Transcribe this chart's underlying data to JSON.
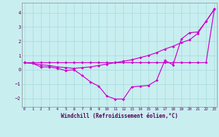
{
  "xlabel": "Windchill (Refroidissement éolien,°C)",
  "background_color": "#c8eef0",
  "grid_color": "#aadddd",
  "line_color": "#cc00cc",
  "x_ticks": [
    0,
    1,
    2,
    3,
    4,
    5,
    6,
    7,
    8,
    9,
    10,
    11,
    12,
    13,
    14,
    15,
    16,
    17,
    18,
    19,
    20,
    21,
    22,
    23
  ],
  "y_ticks": [
    -2,
    -1,
    0,
    1,
    2,
    3,
    4
  ],
  "xlim": [
    -0.3,
    23.3
  ],
  "ylim": [
    -2.6,
    4.7
  ],
  "series_top": [
    0.5,
    0.5,
    0.5,
    0.5,
    0.5,
    0.5,
    0.5,
    0.5,
    0.5,
    0.5,
    0.5,
    0.5,
    0.5,
    0.5,
    0.5,
    0.5,
    0.5,
    0.5,
    0.5,
    0.5,
    0.5,
    0.5,
    0.5,
    4.25
  ],
  "series_mid": [
    0.5,
    0.45,
    0.35,
    0.3,
    0.2,
    0.15,
    0.1,
    0.15,
    0.2,
    0.3,
    0.4,
    0.5,
    0.6,
    0.7,
    0.85,
    1.0,
    1.2,
    1.45,
    1.65,
    1.9,
    2.1,
    2.55,
    3.4,
    4.25
  ],
  "series_bot": [
    0.5,
    0.45,
    0.2,
    0.2,
    0.1,
    -0.05,
    0.0,
    -0.4,
    -0.85,
    -1.15,
    -1.85,
    -2.05,
    -2.05,
    -1.2,
    -1.15,
    -1.1,
    -0.75,
    0.65,
    0.35,
    2.15,
    2.6,
    2.65,
    3.4,
    4.25
  ]
}
